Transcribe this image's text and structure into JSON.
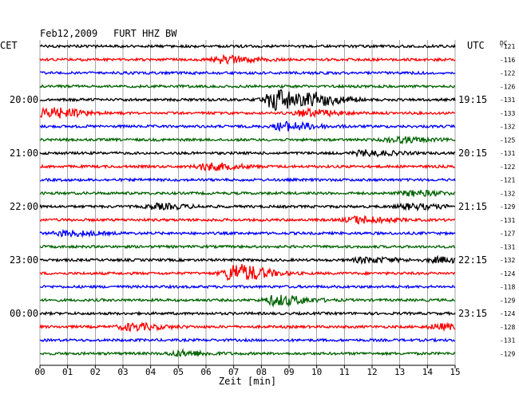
{
  "header": {
    "date": "Feb12,2009",
    "station": "FURT HHZ BW",
    "left_zone": "CET",
    "right_zone": "UTC",
    "dc_label": "DC"
  },
  "chart_data": {
    "type": "line",
    "title": "Feb12,2009   FURT HHZ BW",
    "xlabel": "Zeit [min]",
    "x_ticks": [
      "00",
      "01",
      "02",
      "03",
      "04",
      "05",
      "06",
      "07",
      "08",
      "09",
      "10",
      "11",
      "12",
      "13",
      "14",
      "15"
    ],
    "xlim": [
      0,
      15
    ],
    "grid": true,
    "trace_colors": [
      "#000000",
      "#ff0000",
      "#0000ff",
      "#006400"
    ],
    "left_hour_labels": [
      {
        "label": "20:00",
        "row": 4
      },
      {
        "label": "21:00",
        "row": 8
      },
      {
        "label": "22:00",
        "row": 12
      },
      {
        "label": "23:00",
        "row": 16
      },
      {
        "label": "00:00",
        "row": 20
      }
    ],
    "right_hour_labels": [
      {
        "label": "19:15",
        "row": 4
      },
      {
        "label": "20:15",
        "row": 8
      },
      {
        "label": "21:15",
        "row": 12
      },
      {
        "label": "22:15",
        "row": 16
      },
      {
        "label": "23:15",
        "row": 20
      }
    ],
    "dc_values": [
      "-121",
      "-116",
      "-122",
      "-126",
      "-131",
      "-133",
      "-132",
      "-125",
      "-131",
      "-122",
      "-121",
      "-132",
      "-129",
      "-131",
      "-127",
      "-131",
      "-132",
      "-124",
      "-118",
      "-129",
      "-124",
      "-128",
      "-131",
      "-129"
    ],
    "events": [
      {
        "row": 1,
        "minute": 6.6,
        "amplitude": 4
      },
      {
        "row": 4,
        "minute": 8.5,
        "amplitude": 12
      },
      {
        "row": 4,
        "minute": 10.0,
        "amplitude": 5
      },
      {
        "row": 5,
        "minute": 0.3,
        "amplitude": 6
      },
      {
        "row": 5,
        "minute": 9.6,
        "amplitude": 4
      },
      {
        "row": 6,
        "minute": 8.8,
        "amplitude": 5
      },
      {
        "row": 7,
        "minute": 12.8,
        "amplitude": 3
      },
      {
        "row": 8,
        "minute": 11.7,
        "amplitude": 3
      },
      {
        "row": 9,
        "minute": 6.0,
        "amplitude": 4
      },
      {
        "row": 11,
        "minute": 13.4,
        "amplitude": 3
      },
      {
        "row": 12,
        "minute": 4.2,
        "amplitude": 3
      },
      {
        "row": 12,
        "minute": 13.3,
        "amplitude": 3
      },
      {
        "row": 13,
        "minute": 11.4,
        "amplitude": 4
      },
      {
        "row": 14,
        "minute": 0.9,
        "amplitude": 3
      },
      {
        "row": 16,
        "minute": 11.7,
        "amplitude": 3
      },
      {
        "row": 16,
        "minute": 14.4,
        "amplitude": 3
      },
      {
        "row": 17,
        "minute": 7.0,
        "amplitude": 11
      },
      {
        "row": 19,
        "minute": 8.5,
        "amplitude": 6
      },
      {
        "row": 21,
        "minute": 3.2,
        "amplitude": 4
      },
      {
        "row": 21,
        "minute": 14.4,
        "amplitude": 3
      },
      {
        "row": 23,
        "minute": 5.0,
        "amplitude": 3
      }
    ]
  }
}
